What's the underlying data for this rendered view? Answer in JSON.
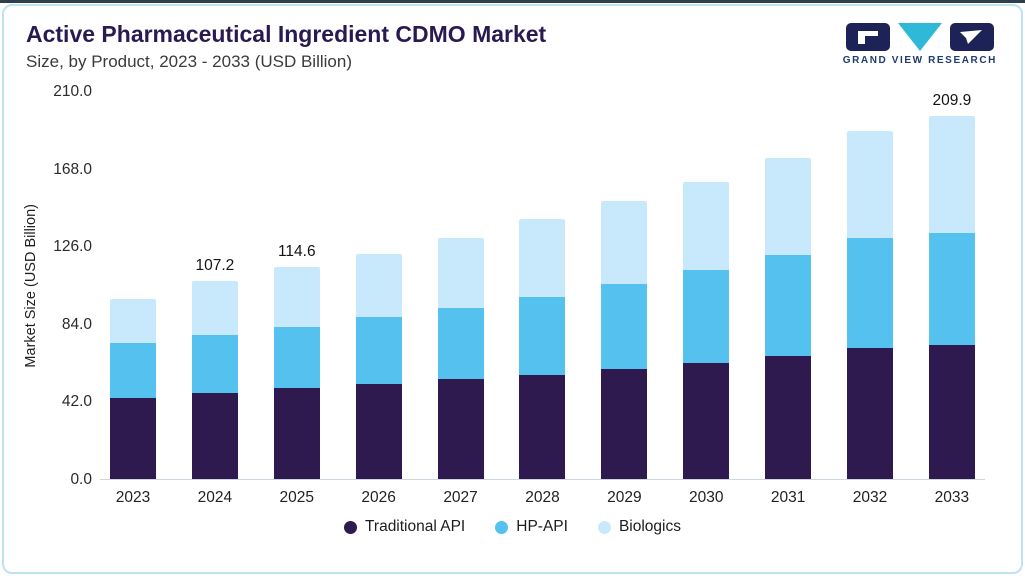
{
  "page": {
    "title": "Active Pharmaceutical Ingredient CDMO Market",
    "subtitle": "Size, by Product, 2023 - 2033 (USD Billion)"
  },
  "logo": {
    "text": "GRAND VIEW RESEARCH",
    "navy": "#1e2357",
    "teal": "#2fb9d8"
  },
  "chart_data": {
    "type": "bar",
    "stacked": true,
    "title": "Active Pharmaceutical Ingredient CDMO Market Size, by Product, 2023 - 2033 (USD Billion)",
    "xlabel": "",
    "ylabel": "Market Size (USD Billion)",
    "ylim": [
      0,
      210
    ],
    "yticks": [
      "0.0",
      "42.0",
      "84.0",
      "126.0",
      "168.0",
      "210.0"
    ],
    "ytick_values": [
      0,
      42,
      84,
      126,
      168,
      210
    ],
    "grid": false,
    "legend_position": "bottom",
    "categories": [
      "2023",
      "2024",
      "2025",
      "2026",
      "2027",
      "2028",
      "2029",
      "2030",
      "2031",
      "2032",
      "2033"
    ],
    "series": [
      {
        "name": "Traditional API",
        "color": "#2e1a4f",
        "values": [
          44.0,
          46.5,
          49.0,
          51.5,
          54.0,
          56.5,
          59.5,
          63.0,
          66.5,
          71.0,
          77.5
        ]
      },
      {
        "name": "HP-API",
        "color": "#55c1ee",
        "values": [
          29.5,
          31.5,
          33.5,
          36.0,
          38.5,
          42.0,
          46.0,
          50.0,
          54.5,
          59.5,
          64.5
        ]
      },
      {
        "name": "Biologics",
        "color": "#c8e9fb",
        "values": [
          24.1,
          29.2,
          32.1,
          34.5,
          38.0,
          42.5,
          45.0,
          48.0,
          52.5,
          58.0,
          67.9
        ]
      }
    ],
    "bar_labels": [
      "",
      "107.2",
      "114.6",
      "",
      "",
      "",
      "",
      "",
      "",
      "",
      "209.9"
    ],
    "totals": [
      97.6,
      107.2,
      114.6,
      122.0,
      130.5,
      141.0,
      150.5,
      161.0,
      173.5,
      188.5,
      209.9
    ]
  }
}
